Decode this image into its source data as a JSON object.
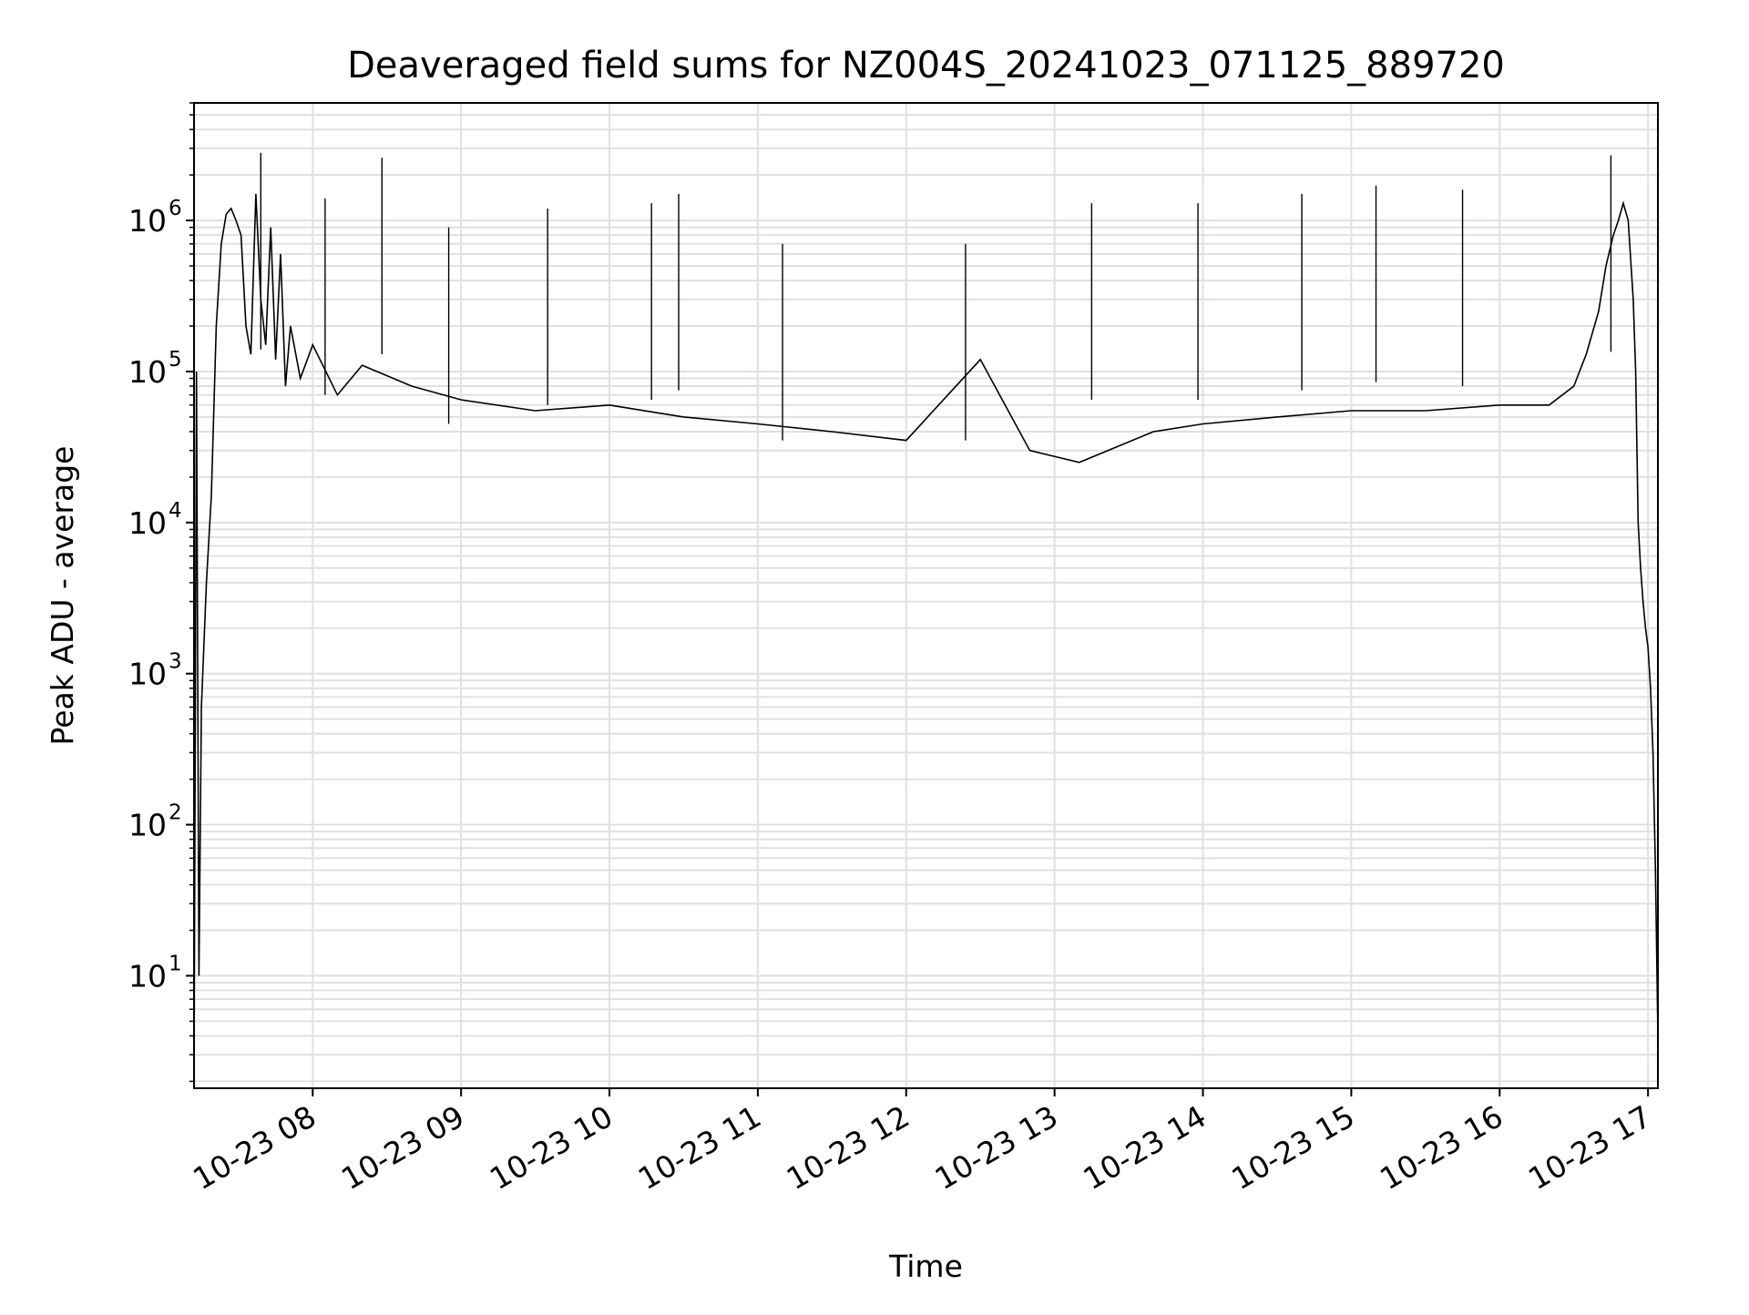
{
  "chart_data": {
    "type": "line",
    "title": "Deaveraged field sums for NZ004S_20241023_071125_889720",
    "xlabel": "Time",
    "ylabel": "Peak ADU - average",
    "yscale": "log",
    "ylim": [
      1.8,
      6000000
    ],
    "xlim": [
      "2024-10-23 07:12",
      "2024-10-23 17:04"
    ],
    "grid": true,
    "line_color": "#000000",
    "grid_color": "#e0e0e0",
    "x_ticks": [
      {
        "value": "2024-10-23 08:00",
        "label": "10-23 08"
      },
      {
        "value": "2024-10-23 09:00",
        "label": "10-23 09"
      },
      {
        "value": "2024-10-23 10:00",
        "label": "10-23 10"
      },
      {
        "value": "2024-10-23 11:00",
        "label": "10-23 11"
      },
      {
        "value": "2024-10-23 12:00",
        "label": "10-23 12"
      },
      {
        "value": "2024-10-23 13:00",
        "label": "10-23 13"
      },
      {
        "value": "2024-10-23 14:00",
        "label": "10-23 14"
      },
      {
        "value": "2024-10-23 15:00",
        "label": "10-23 15"
      },
      {
        "value": "2024-10-23 16:00",
        "label": "10-23 16"
      },
      {
        "value": "2024-10-23 17:00",
        "label": "10-23 17"
      }
    ],
    "y_ticks": [
      {
        "value": 10,
        "base": "10",
        "exp": "1"
      },
      {
        "value": 100,
        "base": "10",
        "exp": "2"
      },
      {
        "value": 1000,
        "base": "10",
        "exp": "3"
      },
      {
        "value": 10000,
        "base": "10",
        "exp": "4"
      },
      {
        "value": 100000,
        "base": "10",
        "exp": "5"
      },
      {
        "value": 1000000,
        "base": "10",
        "exp": "6"
      }
    ],
    "series": [
      {
        "x": [
          "2024-10-23 07:12",
          "2024-10-23 07:13",
          "2024-10-23 07:14",
          "2024-10-23 07:15",
          "2024-10-23 07:17",
          "2024-10-23 07:19",
          "2024-10-23 07:21",
          "2024-10-23 07:23",
          "2024-10-23 07:25",
          "2024-10-23 07:27",
          "2024-10-23 07:29",
          "2024-10-23 07:31",
          "2024-10-23 07:33",
          "2024-10-23 07:35",
          "2024-10-23 07:37",
          "2024-10-23 07:39",
          "2024-10-23 07:41",
          "2024-10-23 07:43",
          "2024-10-23 07:45",
          "2024-10-23 07:47",
          "2024-10-23 07:49",
          "2024-10-23 07:51",
          "2024-10-23 07:55",
          "2024-10-23 08:00",
          "2024-10-23 08:10",
          "2024-10-23 08:20",
          "2024-10-23 08:40",
          "2024-10-23 09:00",
          "2024-10-23 09:30",
          "2024-10-23 10:00",
          "2024-10-23 10:30",
          "2024-10-23 11:00",
          "2024-10-23 11:30",
          "2024-10-23 12:00",
          "2024-10-23 12:30",
          "2024-10-23 12:50",
          "2024-10-23 13:10",
          "2024-10-23 13:40",
          "2024-10-23 14:00",
          "2024-10-23 14:30",
          "2024-10-23 15:00",
          "2024-10-23 15:30",
          "2024-10-23 16:00",
          "2024-10-23 16:20",
          "2024-10-23 16:30",
          "2024-10-23 16:35",
          "2024-10-23 16:40",
          "2024-10-23 16:43",
          "2024-10-23 16:46",
          "2024-10-23 16:48",
          "2024-10-23 16:50",
          "2024-10-23 16:52",
          "2024-10-23 16:54",
          "2024-10-23 16:55",
          "2024-10-23 16:56",
          "2024-10-23 16:57",
          "2024-10-23 16:58",
          "2024-10-23 16:59",
          "2024-10-23 17:00",
          "2024-10-23 17:01",
          "2024-10-23 17:02",
          "2024-10-23 17:03",
          "2024-10-23 17:04"
        ],
        "y": [
          2,
          100000,
          10,
          600,
          4000,
          15000,
          200000,
          700000,
          1100000,
          1200000,
          1000000,
          800000,
          200000,
          130000,
          1500000,
          300000,
          150000,
          900000,
          120000,
          600000,
          80000,
          200000,
          90000,
          150000,
          70000,
          110000,
          80000,
          65000,
          55000,
          60000,
          50000,
          45000,
          40000,
          35000,
          120000,
          30000,
          25000,
          40000,
          45000,
          50000,
          55000,
          55000,
          60000,
          60000,
          80000,
          130000,
          250000,
          500000,
          800000,
          1000000,
          1300000,
          1000000,
          300000,
          100000,
          10000,
          5000,
          3000,
          2000,
          1500,
          800,
          300,
          50,
          4
        ]
      }
    ],
    "spikes": [
      {
        "x": "2024-10-23 07:39",
        "y": 2800000
      },
      {
        "x": "2024-10-23 08:28",
        "y": 2600000
      },
      {
        "x": "2024-10-23 16:45",
        "y": 2700000
      },
      {
        "x": "2024-10-23 08:05",
        "y": 1400000
      },
      {
        "x": "2024-10-23 08:55",
        "y": 900000
      },
      {
        "x": "2024-10-23 09:35",
        "y": 1200000
      },
      {
        "x": "2024-10-23 10:17",
        "y": 1300000
      },
      {
        "x": "2024-10-23 10:28",
        "y": 1500000
      },
      {
        "x": "2024-10-23 11:10",
        "y": 700000
      },
      {
        "x": "2024-10-23 12:24",
        "y": 700000
      },
      {
        "x": "2024-10-23 13:15",
        "y": 1300000
      },
      {
        "x": "2024-10-23 13:58",
        "y": 1300000
      },
      {
        "x": "2024-10-23 14:40",
        "y": 1500000
      },
      {
        "x": "2024-10-23 15:10",
        "y": 1700000
      },
      {
        "x": "2024-10-23 15:45",
        "y": 1600000
      }
    ]
  }
}
